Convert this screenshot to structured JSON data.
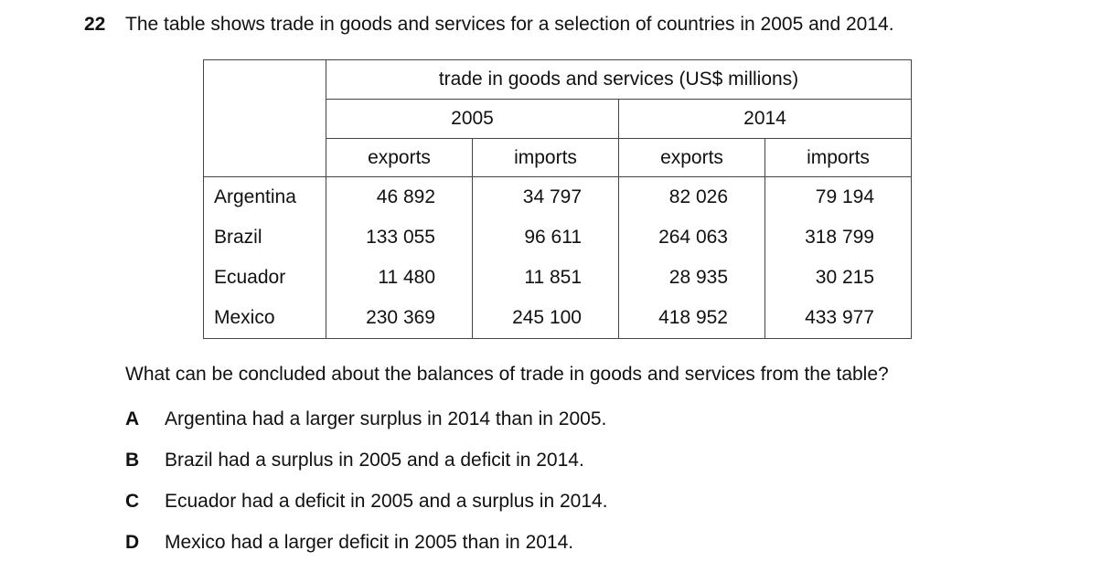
{
  "question": {
    "number": "22",
    "text": "The table shows trade in goods and services for a selection of countries in 2005 and 2014."
  },
  "table": {
    "header": "trade in goods and services (US$ millions)",
    "years": [
      "2005",
      "2014"
    ],
    "columns": [
      "exports",
      "imports",
      "exports",
      "imports"
    ],
    "rows": [
      [
        "Argentina",
        "46 892",
        "34 797",
        "82 026",
        "79 194"
      ],
      [
        "Brazil",
        "133 055",
        "96 611",
        "264 063",
        "318 799"
      ],
      [
        "Ecuador",
        "11 480",
        "11 851",
        "28 935",
        "30 215"
      ],
      [
        "Mexico",
        "230 369",
        "245 100",
        "418 952",
        "433 977"
      ]
    ]
  },
  "prompt": "What can be concluded about the balances of trade in goods and services from the table?",
  "options": [
    {
      "letter": "A",
      "text": "Argentina had a larger surplus in 2014 than in 2005."
    },
    {
      "letter": "B",
      "text": "Brazil had a surplus in 2005 and a deficit in 2014."
    },
    {
      "letter": "C",
      "text": "Ecuador had a deficit in 2005 and a surplus in 2014."
    },
    {
      "letter": "D",
      "text": "Mexico had a larger deficit in 2005 than in 2014."
    }
  ]
}
